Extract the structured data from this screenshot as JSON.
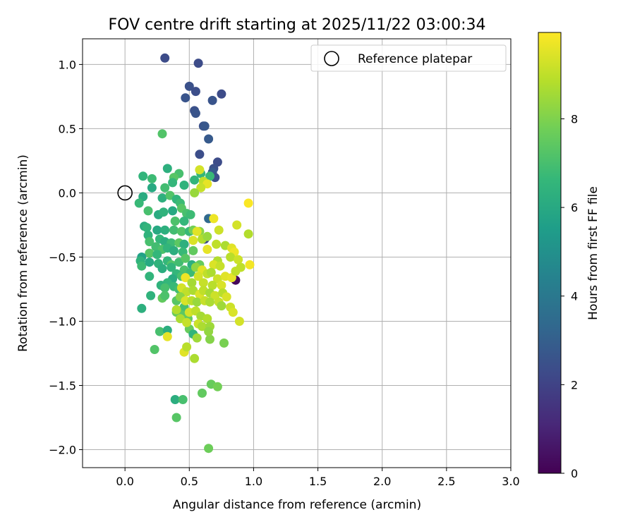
{
  "chart_data": {
    "type": "scatter",
    "title": "FOV centre drift starting at 2025/11/22 03:00:34",
    "xlabel": "Angular distance from reference (arcmin)",
    "ylabel": "Rotation from reference (arcmin)",
    "xlim": [
      -0.33,
      3.0
    ],
    "ylim": [
      -2.14,
      1.2
    ],
    "grid": true,
    "xticks": [
      0.0,
      0.5,
      1.0,
      1.5,
      2.0,
      2.5,
      3.0
    ],
    "xtick_labels": [
      "0.0",
      "0.5",
      "1.0",
      "1.5",
      "2.0",
      "2.5",
      "3.0"
    ],
    "yticks": [
      1.0,
      0.5,
      0.0,
      -0.5,
      -1.0,
      -1.5,
      -2.0
    ],
    "ytick_labels": [
      "1.0",
      "0.5",
      "0.0",
      "−0.5",
      "−1.0",
      "−1.5",
      "−2.0"
    ],
    "legend": {
      "position": "top-right",
      "label": "Reference platepar"
    },
    "reference_point": {
      "x": 0.0,
      "y": 0.0
    },
    "colorbar": {
      "label": "Hours from first FF file",
      "range": [
        0,
        9.95
      ],
      "ticks": [
        0,
        2,
        4,
        6,
        8
      ],
      "tick_labels": [
        "0",
        "2",
        "4",
        "6",
        "8"
      ],
      "colormap": "viridis"
    },
    "points": [
      [
        0.86,
        -0.68,
        0.2
      ],
      [
        0.31,
        1.05,
        2.3
      ],
      [
        0.57,
        1.01,
        2.3
      ],
      [
        0.5,
        0.83,
        2.5
      ],
      [
        0.55,
        0.79,
        2.4
      ],
      [
        0.47,
        0.74,
        2.6
      ],
      [
        0.75,
        0.77,
        2.3
      ],
      [
        0.68,
        0.72,
        2.6
      ],
      [
        0.54,
        0.64,
        2.5
      ],
      [
        0.55,
        0.62,
        2.6
      ],
      [
        0.61,
        0.52,
        2.5
      ],
      [
        0.62,
        0.52,
        2.7
      ],
      [
        0.65,
        0.42,
        2.8
      ],
      [
        0.58,
        0.3,
        2.4
      ],
      [
        0.72,
        0.24,
        2.3
      ],
      [
        0.69,
        0.19,
        2.5
      ],
      [
        0.68,
        0.16,
        2.8
      ],
      [
        0.7,
        0.12,
        2.4
      ],
      [
        0.62,
        -0.36,
        2.2
      ],
      [
        0.65,
        -0.2,
        3.4
      ],
      [
        0.29,
        0.46,
        7.2
      ],
      [
        0.33,
        0.19,
        6.3
      ],
      [
        0.42,
        0.15,
        7.0
      ],
      [
        0.38,
        0.12,
        7.3
      ],
      [
        0.14,
        0.13,
        6.5
      ],
      [
        0.21,
        0.11,
        6.8
      ],
      [
        0.37,
        0.08,
        6.6
      ],
      [
        0.31,
        0.04,
        6.9
      ],
      [
        0.21,
        0.04,
        6.0
      ],
      [
        0.46,
        0.06,
        6.4
      ],
      [
        0.54,
        0.1,
        6.5
      ],
      [
        0.66,
        0.13,
        6.7
      ],
      [
        0.59,
        0.15,
        6.6
      ],
      [
        0.14,
        -0.03,
        6.1
      ],
      [
        0.11,
        -0.08,
        6.7
      ],
      [
        0.18,
        -0.14,
        7.0
      ],
      [
        0.29,
        -0.04,
        6.3
      ],
      [
        0.35,
        -0.02,
        7.2
      ],
      [
        0.4,
        -0.05,
        6.5
      ],
      [
        0.43,
        -0.08,
        6.8
      ],
      [
        0.26,
        -0.17,
        6.1
      ],
      [
        0.3,
        -0.15,
        6.4
      ],
      [
        0.37,
        -0.14,
        6.0
      ],
      [
        0.44,
        -0.12,
        7.3
      ],
      [
        0.48,
        -0.16,
        7.0
      ],
      [
        0.51,
        -0.17,
        6.8
      ],
      [
        0.39,
        -0.22,
        7.1
      ],
      [
        0.46,
        -0.22,
        6.6
      ],
      [
        0.15,
        -0.26,
        6.2
      ],
      [
        0.17,
        -0.27,
        6.5
      ],
      [
        0.25,
        -0.29,
        6.0
      ],
      [
        0.31,
        -0.29,
        6.3
      ],
      [
        0.38,
        -0.29,
        6.9
      ],
      [
        0.44,
        -0.3,
        7.2
      ],
      [
        0.5,
        -0.3,
        6.7
      ],
      [
        0.53,
        -0.29,
        7.8
      ],
      [
        0.58,
        -0.3,
        8.2
      ],
      [
        0.18,
        -0.33,
        6.4
      ],
      [
        0.19,
        -0.38,
        7.0
      ],
      [
        0.27,
        -0.36,
        6.6
      ],
      [
        0.31,
        -0.38,
        6.2
      ],
      [
        0.36,
        -0.39,
        6.8
      ],
      [
        0.42,
        -0.39,
        7.4
      ],
      [
        0.46,
        -0.4,
        6.3
      ],
      [
        0.24,
        -0.42,
        6.9
      ],
      [
        0.29,
        -0.44,
        7.1
      ],
      [
        0.33,
        -0.43,
        6.5
      ],
      [
        0.38,
        -0.45,
        6.2
      ],
      [
        0.45,
        -0.46,
        6.7
      ],
      [
        0.53,
        -0.45,
        7.5
      ],
      [
        0.19,
        -0.47,
        7.3
      ],
      [
        0.25,
        -0.48,
        6.6
      ],
      [
        0.13,
        -0.5,
        5.7
      ],
      [
        0.12,
        -0.53,
        6.4
      ],
      [
        0.13,
        -0.57,
        6.8
      ],
      [
        0.19,
        -0.54,
        6.0
      ],
      [
        0.26,
        -0.55,
        6.4
      ],
      [
        0.33,
        -0.53,
        6.6
      ],
      [
        0.36,
        -0.56,
        7.2
      ],
      [
        0.42,
        -0.54,
        6.9
      ],
      [
        0.47,
        -0.51,
        7.3
      ],
      [
        0.52,
        -0.56,
        6.3
      ],
      [
        0.58,
        -0.56,
        7.6
      ],
      [
        0.36,
        -0.58,
        6.5
      ],
      [
        0.29,
        -0.59,
        6.2
      ],
      [
        0.46,
        -0.6,
        7.1
      ],
      [
        0.51,
        -0.62,
        6.8
      ],
      [
        0.19,
        -0.65,
        6.5
      ],
      [
        0.4,
        -0.63,
        6.6
      ],
      [
        0.44,
        -0.65,
        7.0
      ],
      [
        0.37,
        -0.67,
        6.1
      ],
      [
        0.33,
        -0.7,
        6.6
      ],
      [
        0.28,
        -0.72,
        6.4
      ],
      [
        0.31,
        -0.74,
        7.0
      ],
      [
        0.38,
        -0.73,
        6.7
      ],
      [
        0.42,
        -0.75,
        6.9
      ],
      [
        0.2,
        -0.8,
        6.4
      ],
      [
        0.29,
        -0.82,
        7.5
      ],
      [
        0.31,
        -0.8,
        7.1
      ],
      [
        0.4,
        -0.84,
        7.3
      ],
      [
        0.13,
        -0.9,
        6.3
      ],
      [
        0.46,
        -0.89,
        7.0
      ],
      [
        0.4,
        -0.93,
        7.6
      ],
      [
        0.44,
        -0.95,
        7.4
      ],
      [
        0.49,
        -0.98,
        7.5
      ],
      [
        0.27,
        -1.08,
        7.0
      ],
      [
        0.33,
        -1.07,
        6.2
      ],
      [
        0.5,
        -1.06,
        7.6
      ],
      [
        0.53,
        -1.1,
        6.5
      ],
      [
        0.23,
        -1.22,
        7.2
      ],
      [
        0.39,
        -1.61,
        6.2
      ],
      [
        0.45,
        -1.61,
        7.0
      ],
      [
        0.4,
        -1.75,
        7.3
      ],
      [
        0.6,
        -1.56,
        7.5
      ],
      [
        0.67,
        -1.49,
        7.6
      ],
      [
        0.72,
        -1.51,
        7.8
      ],
      [
        0.65,
        -1.99,
        7.7
      ],
      [
        0.77,
        -1.17,
        7.9
      ],
      [
        0.66,
        -1.14,
        8.1
      ],
      [
        0.54,
        -1.29,
        8.7
      ],
      [
        0.58,
        0.18,
        9.3
      ],
      [
        0.61,
        0.09,
        9.0
      ],
      [
        0.64,
        0.07,
        9.6
      ],
      [
        0.59,
        0.04,
        9.1
      ],
      [
        0.54,
        0.0,
        8.4
      ],
      [
        0.69,
        -0.2,
        9.7
      ],
      [
        0.56,
        -0.3,
        9.5
      ],
      [
        0.73,
        -0.29,
        9.2
      ],
      [
        0.6,
        -0.36,
        8.8
      ],
      [
        0.64,
        -0.34,
        8.4
      ],
      [
        0.53,
        -0.37,
        9.4
      ],
      [
        0.64,
        -0.44,
        9.6
      ],
      [
        0.71,
        -0.4,
        9.0
      ],
      [
        0.78,
        -0.41,
        8.7
      ],
      [
        0.83,
        -0.43,
        9.5
      ],
      [
        0.85,
        -0.46,
        9.7
      ],
      [
        0.82,
        -0.5,
        8.9
      ],
      [
        0.88,
        -0.52,
        9.2
      ],
      [
        0.72,
        -0.53,
        8.8
      ],
      [
        0.69,
        -0.56,
        9.4
      ],
      [
        0.74,
        -0.57,
        9.1
      ],
      [
        0.9,
        -0.58,
        9.0
      ],
      [
        0.97,
        -0.56,
        9.8
      ],
      [
        0.96,
        -0.32,
        8.8
      ],
      [
        0.87,
        -0.25,
        9.3
      ],
      [
        0.96,
        -0.08,
        9.9
      ],
      [
        0.55,
        -0.58,
        8.3
      ],
      [
        0.6,
        -0.6,
        9.5
      ],
      [
        0.64,
        -0.63,
        9.0
      ],
      [
        0.57,
        -0.65,
        9.3
      ],
      [
        0.67,
        -0.62,
        8.7
      ],
      [
        0.72,
        -0.67,
        9.2
      ],
      [
        0.78,
        -0.65,
        9.5
      ],
      [
        0.83,
        -0.66,
        9.6
      ],
      [
        0.86,
        -0.61,
        9.0
      ],
      [
        0.47,
        -0.66,
        9.7
      ],
      [
        0.52,
        -0.7,
        8.6
      ],
      [
        0.61,
        -0.7,
        9.1
      ],
      [
        0.68,
        -0.72,
        8.9
      ],
      [
        0.75,
        -0.72,
        9.4
      ],
      [
        0.44,
        -0.74,
        9.3
      ],
      [
        0.48,
        -0.77,
        9.0
      ],
      [
        0.53,
        -0.76,
        8.7
      ],
      [
        0.58,
        -0.79,
        9.4
      ],
      [
        0.61,
        -0.76,
        9.0
      ],
      [
        0.66,
        -0.78,
        8.6
      ],
      [
        0.7,
        -0.8,
        9.2
      ],
      [
        0.76,
        -0.78,
        8.9
      ],
      [
        0.79,
        -0.81,
        9.4
      ],
      [
        0.73,
        -0.85,
        9.1
      ],
      [
        0.43,
        -0.81,
        8.2
      ],
      [
        0.47,
        -0.84,
        9.4
      ],
      [
        0.52,
        -0.84,
        8.9
      ],
      [
        0.56,
        -0.85,
        8.4
      ],
      [
        0.62,
        -0.84,
        9.1
      ],
      [
        0.66,
        -0.85,
        8.7
      ],
      [
        0.75,
        -0.88,
        8.5
      ],
      [
        0.82,
        -0.89,
        9.2
      ],
      [
        0.84,
        -0.93,
        9.4
      ],
      [
        0.89,
        -1.0,
        9.3
      ],
      [
        0.4,
        -0.91,
        8.8
      ],
      [
        0.5,
        -0.93,
        9.3
      ],
      [
        0.55,
        -0.92,
        9.0
      ],
      [
        0.59,
        -0.96,
        8.6
      ],
      [
        0.64,
        -0.98,
        8.8
      ],
      [
        0.43,
        -0.98,
        8.7
      ],
      [
        0.48,
        -1.01,
        9.1
      ],
      [
        0.57,
        -1.02,
        9.2
      ],
      [
        0.6,
        -1.04,
        8.7
      ],
      [
        0.66,
        -1.04,
        8.5
      ],
      [
        0.65,
        -1.08,
        8.3
      ],
      [
        0.56,
        -1.13,
        8.5
      ],
      [
        0.33,
        -1.12,
        9.6
      ],
      [
        0.46,
        -1.24,
        9.5
      ],
      [
        0.48,
        -1.2,
        8.9
      ]
    ]
  }
}
